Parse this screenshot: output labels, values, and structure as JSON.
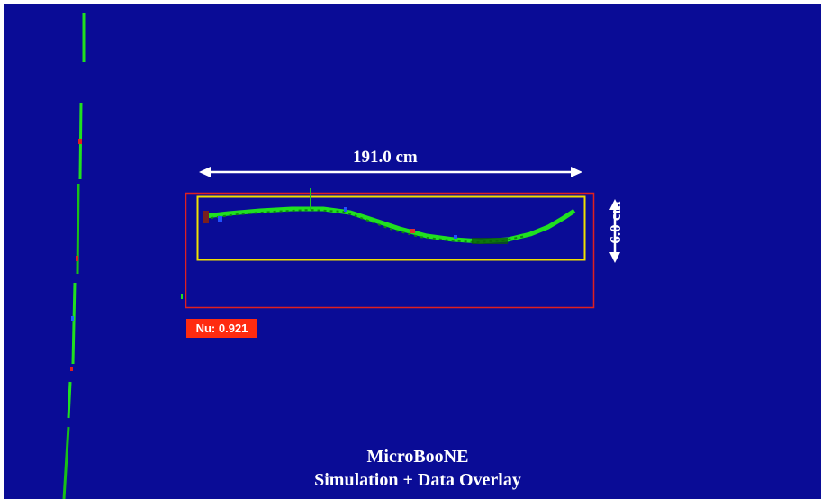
{
  "event_display": {
    "length_label": "191.0 cm",
    "width_label": "6.0 cm",
    "nu_score_label": "Nu: 0.921",
    "experiment": "MicroBooNE",
    "subtitle": "Simulation + Data Overlay"
  },
  "colors": {
    "background": "#0a0c96",
    "track_green": "#20e020",
    "outer_box": "#e02020",
    "inner_box": "#f0e000",
    "badge": "#ff2b10"
  }
}
